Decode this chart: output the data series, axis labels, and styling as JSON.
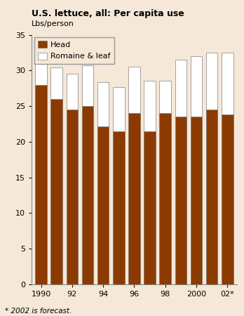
{
  "title": "U.S. lettuce, all: Per capita use",
  "ylabel": "Lbs/person",
  "footnote": "* 2002 is forecast.",
  "years": [
    1990,
    1991,
    1992,
    1993,
    1994,
    1995,
    1996,
    1997,
    1998,
    1999,
    2000,
    2001,
    2002
  ],
  "xtick_labels": [
    "1990",
    "92",
    "94",
    "96",
    "98",
    "2000",
    "02*"
  ],
  "xtick_positions": [
    1990,
    1992,
    1994,
    1996,
    1998,
    2000,
    2002
  ],
  "head_values": [
    28.0,
    26.0,
    24.5,
    25.0,
    22.2,
    21.5,
    24.0,
    21.5,
    24.0,
    23.5,
    23.5,
    24.5,
    23.8
  ],
  "totals": [
    31.5,
    30.4,
    29.5,
    30.7,
    28.4,
    27.7,
    30.5,
    28.6,
    28.6,
    31.5,
    32.0,
    32.5,
    32.5
  ],
  "head_color": "#8B3A00",
  "romaine_color": "#FFFFFF",
  "bar_edge_color": "#666666",
  "fig_bg_color": "#F5E8D8",
  "plot_bg_color": "#F5E8D8",
  "ylim": [
    0,
    35
  ],
  "yticks": [
    0,
    5,
    10,
    15,
    20,
    25,
    30,
    35
  ],
  "bar_width": 0.75,
  "title_fontsize": 9,
  "label_fontsize": 8,
  "tick_fontsize": 8,
  "legend_fontsize": 8,
  "footnote_fontsize": 7.5
}
